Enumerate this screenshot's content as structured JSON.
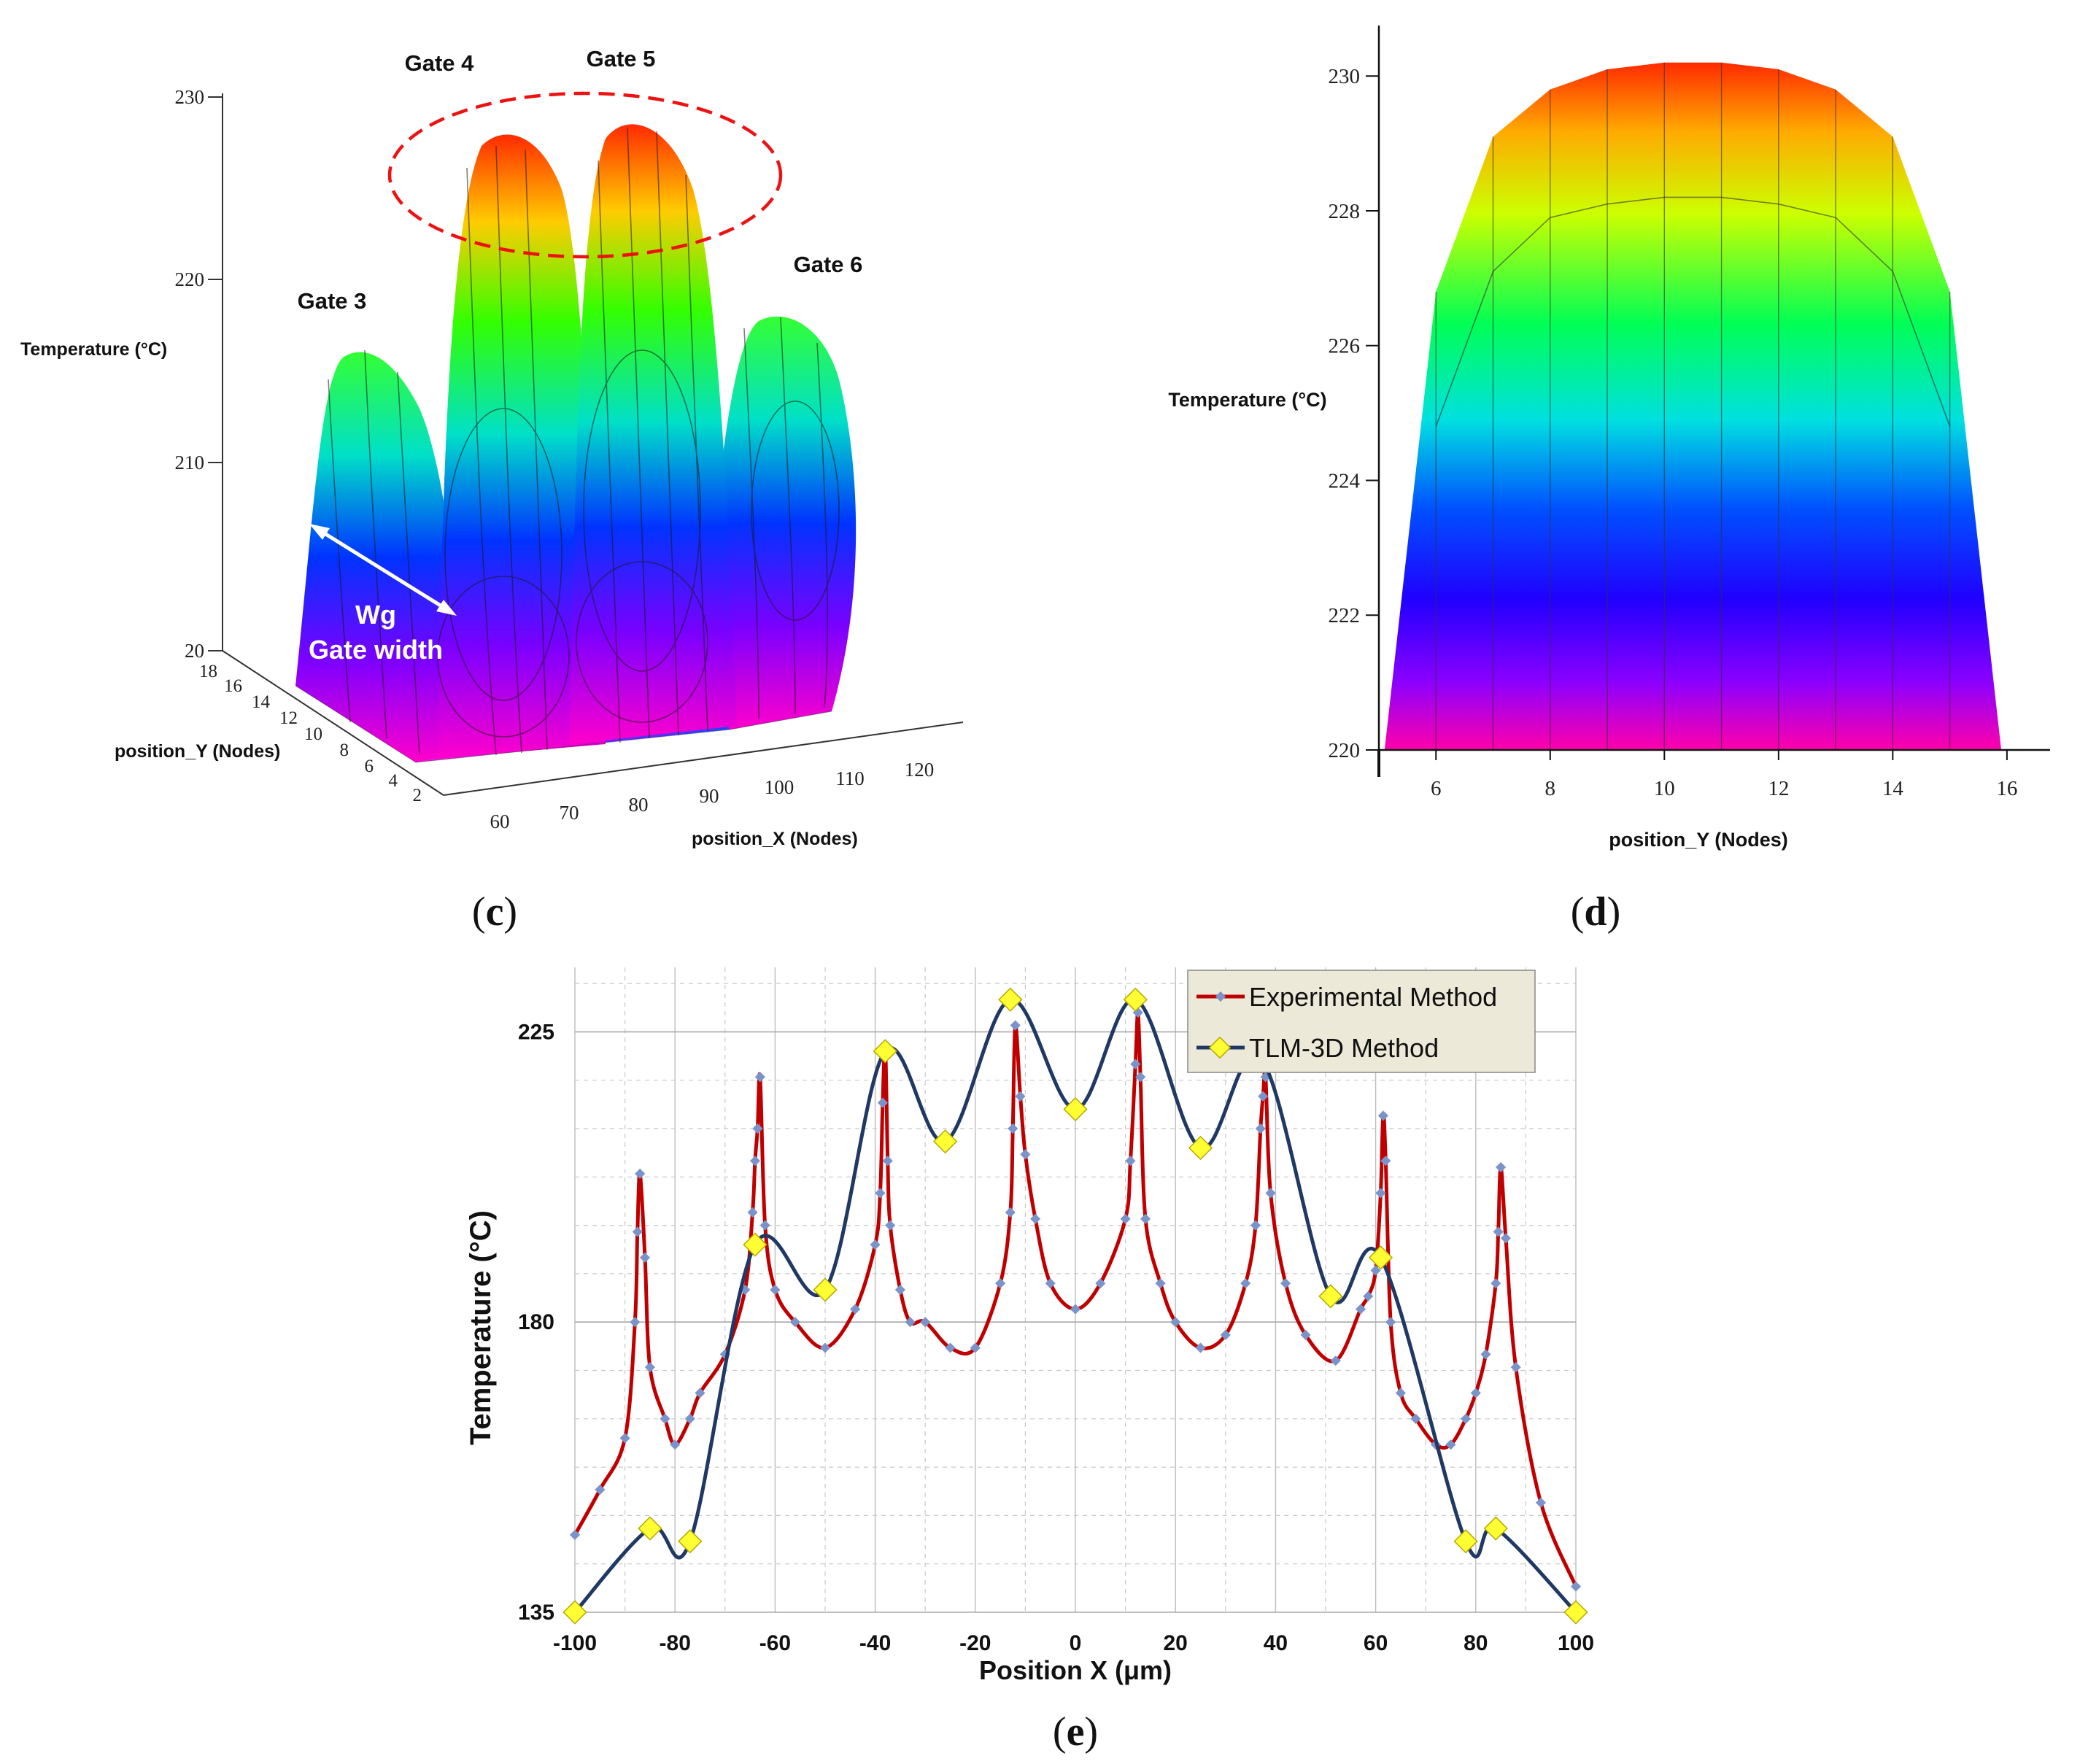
{
  "panels": {
    "c": {
      "caption_letter": "c",
      "caption_open": "(",
      "caption_close": ")",
      "gate_labels": [
        "Gate 3",
        "Gate 4",
        "Gate 5",
        "Gate 6"
      ],
      "z_label": "Temperature (°C)",
      "x_label": "position_X (Nodes)",
      "y_label": "position_Y (Nodes)",
      "annotation_line1": "Wg",
      "annotation_line2": "Gate  width",
      "z_ticks": [
        "230",
        "220",
        "210",
        "20"
      ],
      "x_ticks": [
        "60",
        "70",
        "80",
        "90",
        "100",
        "110",
        "120"
      ],
      "y_ticks": [
        "18",
        "16",
        "14",
        "12",
        "10",
        "8",
        "6",
        "4",
        "2"
      ]
    },
    "d": {
      "caption_letter": "d",
      "caption_open": "(",
      "caption_close": ")",
      "y_label": "Temperature (°C)",
      "x_label": "position_Y (Nodes)",
      "y_ticks": [
        "230",
        "228",
        "226",
        "224",
        "222",
        "220"
      ],
      "x_ticks": [
        "6",
        "8",
        "10",
        "12",
        "14",
        "16"
      ]
    },
    "e": {
      "caption_letter": "e",
      "caption_open": "(",
      "caption_close": ")"
    }
  },
  "chart_data": [
    {
      "type": "surface3d",
      "panel": "c",
      "zlabel": "Temperature (°C)",
      "xlabel": "position_X (Nodes)",
      "ylabel": "position_Y (Nodes)",
      "zlim": [
        200,
        230
      ],
      "gates": [
        {
          "name": "Gate 3",
          "peak": 215
        },
        {
          "name": "Gate 4",
          "peak": 230
        },
        {
          "name": "Gate 5",
          "peak": 230
        },
        {
          "name": "Gate 6",
          "peak": 218
        }
      ]
    },
    {
      "type": "area",
      "panel": "d",
      "xlabel": "position_Y (Nodes)",
      "ylabel": "Temperature (°C)",
      "xlim": [
        5,
        16.5
      ],
      "ylim": [
        220,
        230.5
      ],
      "outer": [
        [
          5,
          220
        ],
        [
          6,
          226.8
        ],
        [
          7,
          229.1
        ],
        [
          8,
          229.8
        ],
        [
          9,
          230.1
        ],
        [
          10,
          230.2
        ],
        [
          11,
          230.2
        ],
        [
          12,
          230.1
        ],
        [
          13,
          229.8
        ],
        [
          14,
          229.1
        ],
        [
          15,
          226.8
        ],
        [
          16,
          220
        ]
      ],
      "inner": [
        [
          6,
          224.8
        ],
        [
          7,
          227.1
        ],
        [
          8,
          227.9
        ],
        [
          9,
          228.1
        ],
        [
          10,
          228.2
        ],
        [
          11,
          228.2
        ],
        [
          12,
          228.1
        ],
        [
          13,
          227.9
        ],
        [
          14,
          227.1
        ],
        [
          15,
          224.8
        ]
      ]
    },
    {
      "type": "line",
      "panel": "e",
      "xlabel": "Position X (μm)",
      "ylabel": "Temperature (°C)",
      "xlim": [
        -100,
        100
      ],
      "ylim": [
        135,
        235
      ],
      "y_ticks": [
        135,
        180,
        225
      ],
      "x_ticks": [
        -100,
        -80,
        -60,
        -40,
        -20,
        0,
        20,
        40,
        60,
        80,
        100
      ],
      "legend": "top-right",
      "series": [
        {
          "name": "Experimental Method",
          "color": "#c00000",
          "marker_color": "#7b93c8",
          "x": [
            -100,
            -95,
            -90,
            -88,
            -87.5,
            -87,
            -86,
            -85,
            -82,
            -80,
            -77,
            -75,
            -70,
            -66,
            -64.5,
            -64,
            -63.5,
            -63,
            -62,
            -60,
            -56,
            -50,
            -44,
            -40,
            -39,
            -38.5,
            -38,
            -37.5,
            -37,
            -35,
            -33,
            -30,
            -25,
            -20,
            -15,
            -13,
            -12.5,
            -12,
            -11,
            -10,
            -8,
            -5,
            0,
            5,
            10,
            11,
            12,
            12.5,
            13,
            14,
            17,
            20,
            25,
            30,
            34,
            36,
            37,
            37.5,
            38,
            39,
            42,
            46,
            52,
            57,
            58.5,
            60,
            61,
            61.5,
            62,
            63,
            65,
            68,
            72,
            75,
            78,
            80,
            82,
            84,
            84.5,
            85,
            86,
            88,
            93,
            100
          ],
          "y": [
            147,
            154,
            162,
            180,
            194,
            203,
            190,
            173,
            165,
            161,
            165,
            169,
            175,
            185,
            197,
            205,
            210,
            218,
            195,
            185,
            180,
            176,
            182,
            192,
            200,
            214,
            223,
            205,
            195,
            185,
            180,
            180,
            176,
            176,
            186,
            197,
            210,
            226,
            215,
            206,
            196,
            186,
            182,
            186,
            196,
            205,
            220,
            228,
            218,
            196,
            186,
            180,
            176,
            178,
            186,
            195,
            210,
            215,
            218,
            200,
            186,
            178,
            174,
            182,
            184,
            188,
            200,
            212,
            205,
            180,
            169,
            165,
            161,
            161,
            165,
            169,
            175,
            186,
            194,
            204,
            193,
            173,
            152,
            139
          ]
        },
        {
          "name": "TLM-3D Method",
          "color": "#1f3864",
          "marker_color": "#ffff33",
          "x": [
            -100,
            -85,
            -77,
            -64,
            -50,
            -38,
            -26,
            -13,
            0,
            12,
            25,
            37,
            51,
            61,
            78,
            84,
            100
          ],
          "y": [
            135,
            148,
            146,
            192,
            185,
            222,
            208,
            230,
            213,
            230,
            207,
            221,
            184,
            190,
            146,
            148,
            135
          ]
        }
      ]
    }
  ]
}
